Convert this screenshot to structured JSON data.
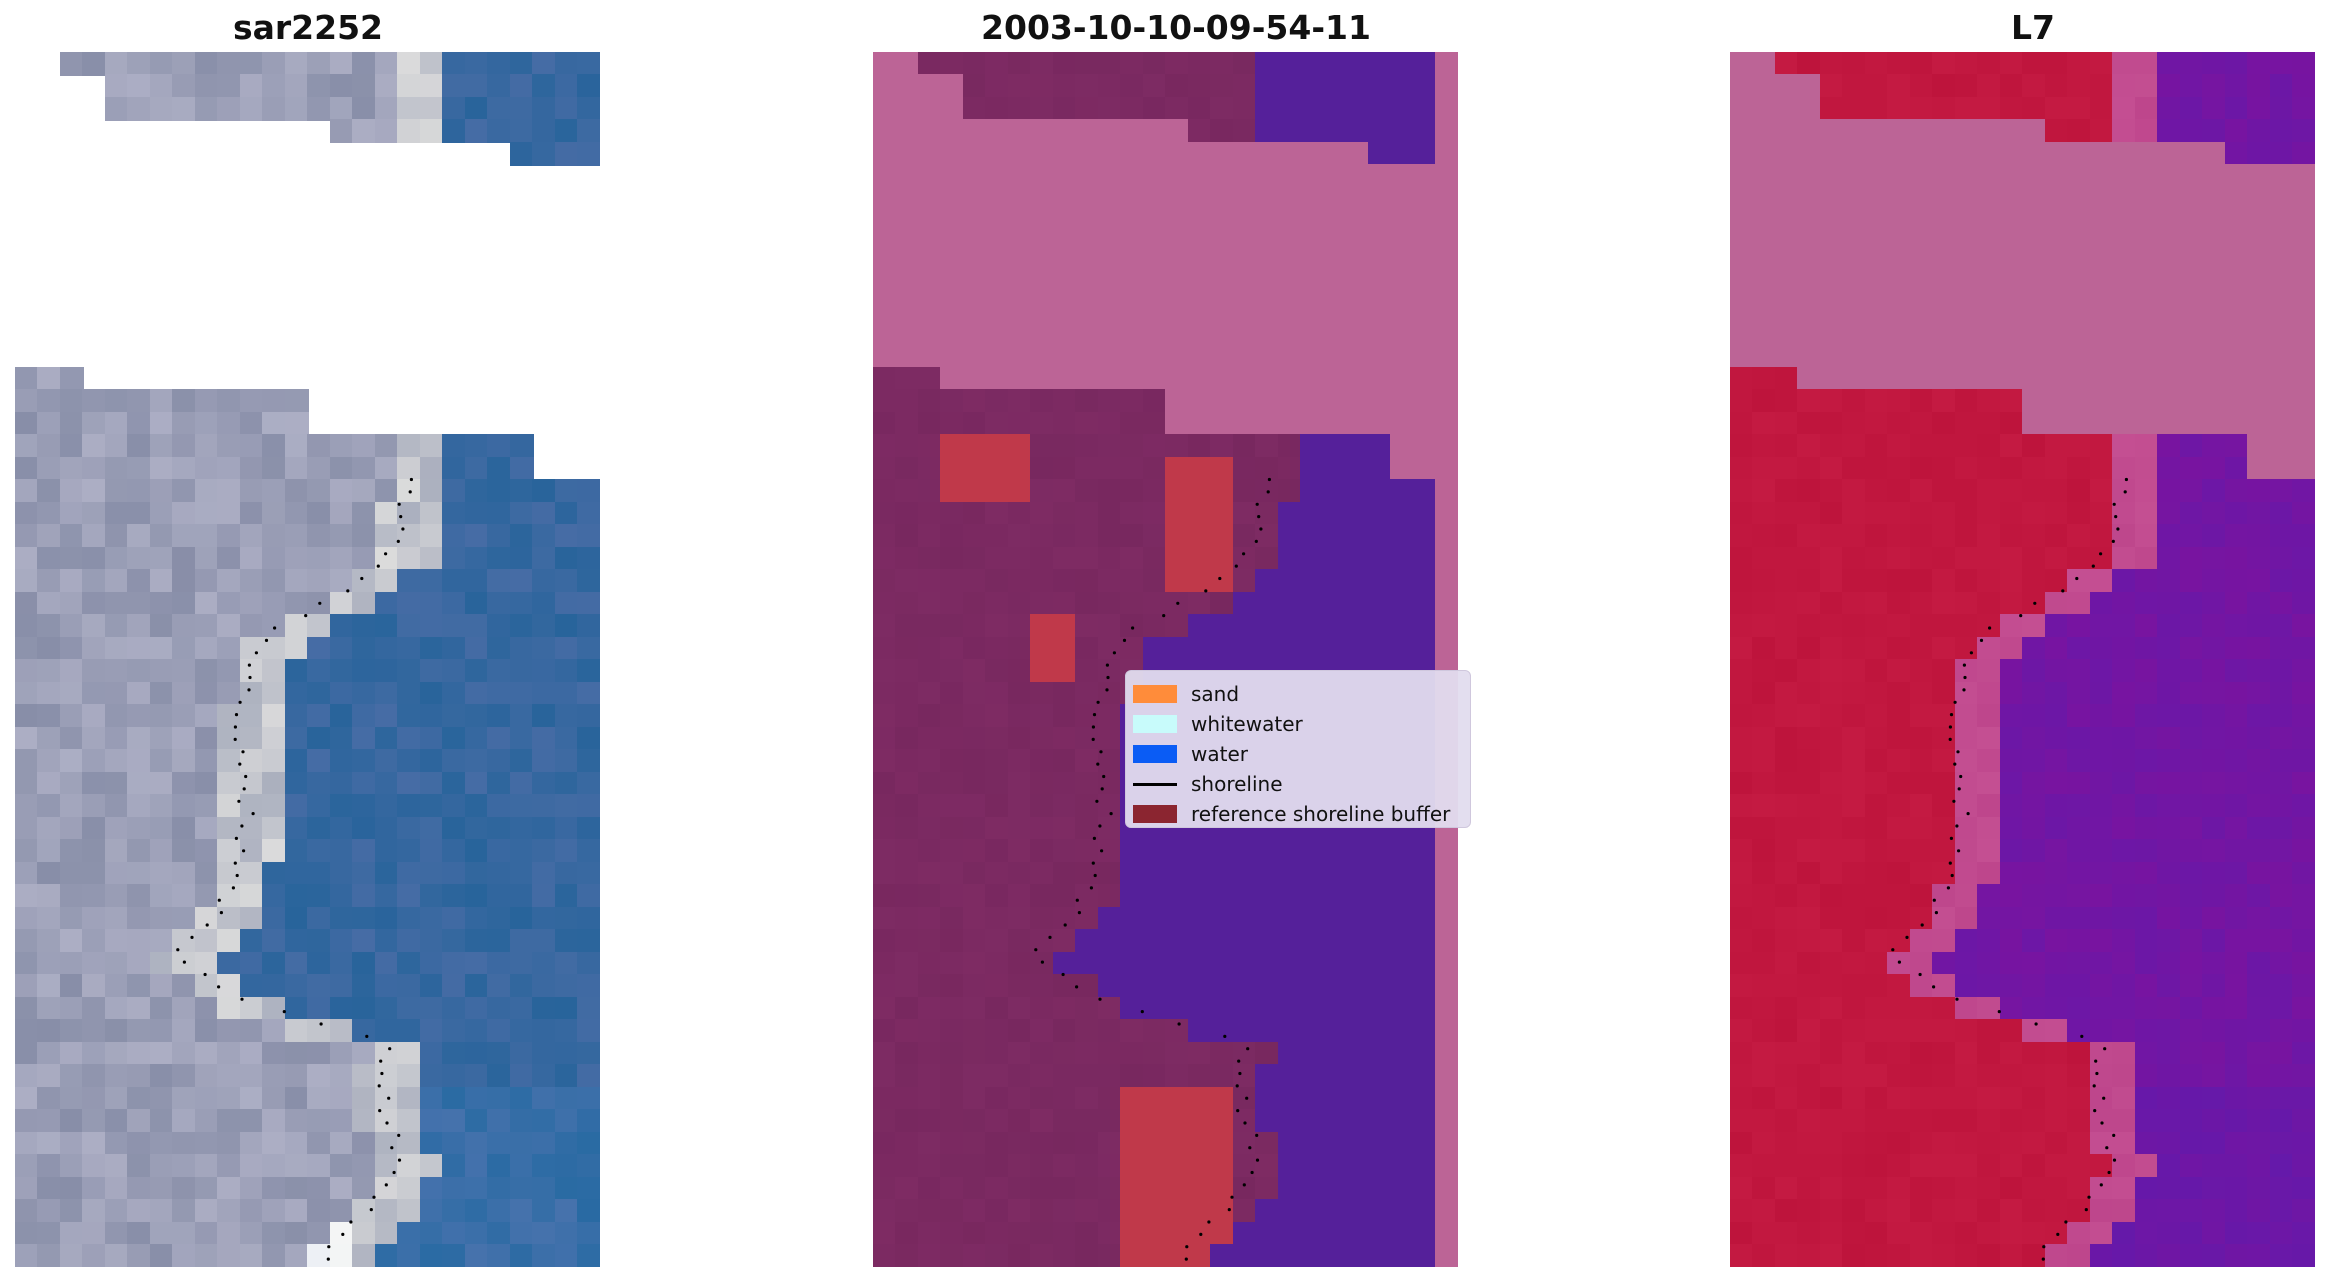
{
  "panels": [
    {
      "title": "sar2252",
      "style": "rgb"
    },
    {
      "title": "2003-10-10-09-54-11",
      "style": "classified"
    },
    {
      "title": "L7",
      "style": "index"
    }
  ],
  "legend": {
    "items": [
      {
        "label": "sand",
        "color": "#ff8c3a",
        "kind": "patch"
      },
      {
        "label": "whitewater",
        "color": "#c8fbfb",
        "kind": "patch"
      },
      {
        "label": "water",
        "color": "#0a5cf5",
        "kind": "patch"
      },
      {
        "label": "shoreline",
        "color": "#000000",
        "kind": "line"
      },
      {
        "label": "reference shoreline buffer",
        "color": "#8b2530",
        "kind": "patch"
      }
    ]
  },
  "colors": {
    "nodata_overlay": "#bc6496",
    "water_class": "#55209a",
    "land_class": "#7d2c68",
    "buffer_class": "#c0394a"
  }
}
